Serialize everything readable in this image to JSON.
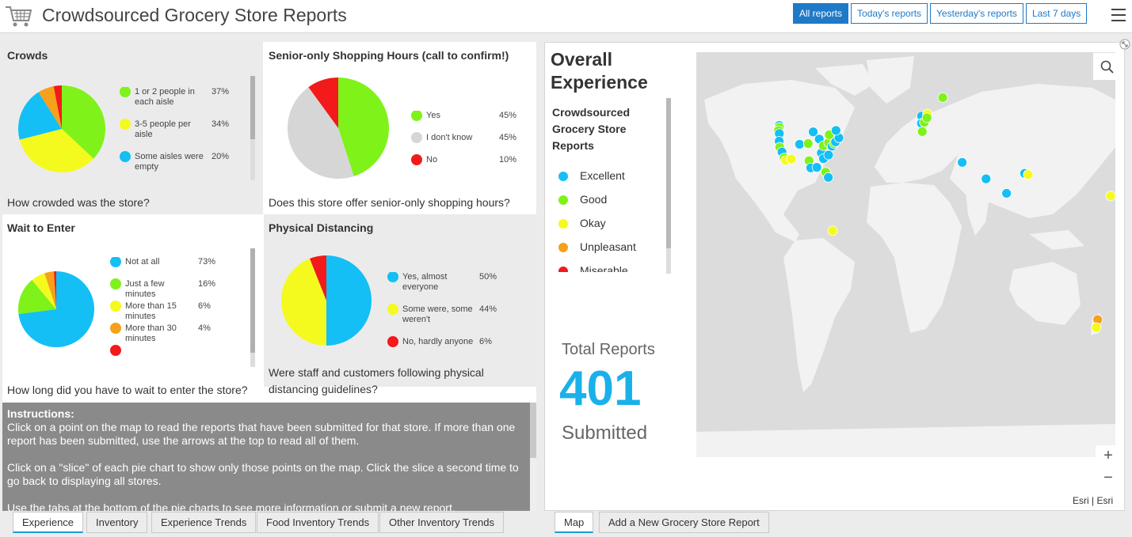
{
  "header": {
    "title": "Crowdsourced Grocery Store Reports",
    "filters": [
      "All reports",
      "Today's reports",
      "Yesterday's reports",
      "Last 7 days"
    ],
    "active_filter": "All reports"
  },
  "panels": {
    "crowds": {
      "title": "Crowds",
      "question": "How crowded was the store?",
      "legend": [
        {
          "label": "1 or 2 people in each aisle",
          "pct": "37%",
          "color": "#7ff21a"
        },
        {
          "label": "3-5 people per aisle",
          "pct": "34%",
          "color": "#f5fa1e"
        },
        {
          "label": "Some aisles were empty",
          "pct": "20%",
          "color": "#13bff5"
        }
      ],
      "slices": [
        {
          "color": "#7ff21a",
          "pct": 37
        },
        {
          "color": "#f5fa1e",
          "pct": 34
        },
        {
          "color": "#13bff5",
          "pct": 20
        },
        {
          "color": "#f7a01a",
          "pct": 6
        },
        {
          "color": "#f21a1a",
          "pct": 3
        }
      ]
    },
    "senior": {
      "title": "Senior-only Shopping Hours (call to confirm!)",
      "question": "Does this store offer senior-only shopping hours?",
      "legend": [
        {
          "label": "Yes",
          "pct": "45%",
          "color": "#7ff21a"
        },
        {
          "label": "I don't know",
          "pct": "45%",
          "color": "#d6d6d6"
        },
        {
          "label": "No",
          "pct": "10%",
          "color": "#f21a1a"
        }
      ],
      "slices": [
        {
          "color": "#7ff21a",
          "pct": 45
        },
        {
          "color": "#d6d6d6",
          "pct": 45
        },
        {
          "color": "#f21a1a",
          "pct": 10
        }
      ]
    },
    "wait": {
      "title": "Wait to Enter",
      "question": "How long did you have to wait to enter the store?",
      "legend": [
        {
          "label": "Not at all",
          "pct": "73%",
          "color": "#13bff5"
        },
        {
          "label": "Just a few minutes",
          "pct": "16%",
          "color": "#7ff21a"
        },
        {
          "label": "More than 15 minutes",
          "pct": "6%",
          "color": "#f5fa1e"
        },
        {
          "label": "More than 30 minutes",
          "pct": "4%",
          "color": "#f7a01a"
        },
        {
          "label": "",
          "pct": "",
          "color": "#f21a1a"
        }
      ],
      "slices": [
        {
          "color": "#13bff5",
          "pct": 73
        },
        {
          "color": "#7ff21a",
          "pct": 16
        },
        {
          "color": "#f5fa1e",
          "pct": 6
        },
        {
          "color": "#f7a01a",
          "pct": 4
        },
        {
          "color": "#f21a1a",
          "pct": 1
        }
      ]
    },
    "distancing": {
      "title": "Physical Distancing",
      "question": "Were staff and customers following physical distancing guidelines?",
      "legend": [
        {
          "label": "Yes, almost everyone",
          "pct": "50%",
          "color": "#13bff5"
        },
        {
          "label": "Some were, some weren't",
          "pct": "44%",
          "color": "#f5fa1e"
        },
        {
          "label": "No, hardly anyone",
          "pct": "6%",
          "color": "#f21a1a"
        }
      ],
      "slices": [
        {
          "color": "#13bff5",
          "pct": 50
        },
        {
          "color": "#f5fa1e",
          "pct": 44
        },
        {
          "color": "#f21a1a",
          "pct": 6
        }
      ]
    }
  },
  "instructions": {
    "title": "Instructions:",
    "paragraphs": [
      "Click on a point on the map to read the reports that have been submitted for that store. If more than one report has been submitted, use the arrows at the top to read all of them.",
      "Click on a \"slice\" of each pie chart to show only those points on the map. Click the slice a second time to go back to displaying all stores.",
      "Use the tabs at the bottom of the pie charts to see more information or submit a new report."
    ]
  },
  "left_tabs": [
    "Experience",
    "Inventory",
    "Experience Trends",
    "Food Inventory Trends",
    "Other Inventory Trends"
  ],
  "right_tabs": [
    "Map",
    "Add a New Grocery Store Report"
  ],
  "overall": {
    "title": "Overall Experience",
    "legend_title": "Crowdsourced Grocery Store Reports",
    "legend": [
      {
        "label": "Excellent",
        "color": "#13bff5"
      },
      {
        "label": "Good",
        "color": "#7ff21a"
      },
      {
        "label": "Okay",
        "color": "#f5fa1e"
      },
      {
        "label": "Unpleasant",
        "color": "#f7a01a"
      },
      {
        "label": "Miserable",
        "color": "#f21a1a"
      }
    ],
    "total_label": "Total Reports",
    "total_value": "401",
    "total_sub": "Submitted"
  },
  "map": {
    "attribution": "Esri | Esri",
    "zoom_in": "+",
    "zoom_out": "−",
    "points": [
      {
        "lon": -122.4,
        "lat": 47.6,
        "color": "#13bff5"
      },
      {
        "lon": -122.3,
        "lat": 46.8,
        "color": "#7ff21a"
      },
      {
        "lon": -123.0,
        "lat": 45.5,
        "color": "#7ff21a"
      },
      {
        "lon": -122.3,
        "lat": 44.2,
        "color": "#13bff5"
      },
      {
        "lon": -122.4,
        "lat": 41.0,
        "color": "#13bff5"
      },
      {
        "lon": -121.9,
        "lat": 38.5,
        "color": "#7ff21a"
      },
      {
        "lon": -120.0,
        "lat": 36.5,
        "color": "#13bff5"
      },
      {
        "lon": -118.2,
        "lat": 34.0,
        "color": "#7ff21a"
      },
      {
        "lon": -117.0,
        "lat": 33.0,
        "color": "#f5fa1e"
      },
      {
        "lon": -112.0,
        "lat": 33.5,
        "color": "#f5fa1e"
      },
      {
        "lon": -104.9,
        "lat": 39.7,
        "color": "#13bff5"
      },
      {
        "lon": -97.5,
        "lat": 40.0,
        "color": "#7ff21a"
      },
      {
        "lon": -96.8,
        "lat": 32.8,
        "color": "#7ff21a"
      },
      {
        "lon": -95.3,
        "lat": 29.8,
        "color": "#13bff5"
      },
      {
        "lon": -93.2,
        "lat": 44.9,
        "color": "#13bff5"
      },
      {
        "lon": -90.1,
        "lat": 30.0,
        "color": "#13bff5"
      },
      {
        "lon": -88.0,
        "lat": 41.9,
        "color": "#13bff5"
      },
      {
        "lon": -86.2,
        "lat": 36.1,
        "color": "#13bff5"
      },
      {
        "lon": -84.4,
        "lat": 33.7,
        "color": "#13bff5"
      },
      {
        "lon": -84.5,
        "lat": 39.1,
        "color": "#7ff21a"
      },
      {
        "lon": -82.5,
        "lat": 28.0,
        "color": "#7ff21a"
      },
      {
        "lon": -80.2,
        "lat": 25.8,
        "color": "#13bff5"
      },
      {
        "lon": -80.0,
        "lat": 35.2,
        "color": "#13bff5"
      },
      {
        "lon": -80.0,
        "lat": 40.4,
        "color": "#7ff21a"
      },
      {
        "lon": -77.0,
        "lat": 38.9,
        "color": "#13bff5"
      },
      {
        "lon": -75.2,
        "lat": 40.0,
        "color": "#7ff21a"
      },
      {
        "lon": -74.0,
        "lat": 40.7,
        "color": "#13bff5"
      },
      {
        "lon": -71.1,
        "lat": 42.4,
        "color": "#13bff5"
      },
      {
        "lon": -79.4,
        "lat": 43.7,
        "color": "#7ff21a"
      },
      {
        "lon": -73.6,
        "lat": 45.5,
        "color": "#13bff5"
      },
      {
        "lon": -76.5,
        "lat": 3.4,
        "color": "#f5fa1e"
      },
      {
        "lon": -0.1,
        "lat": 51.5,
        "color": "#13bff5"
      },
      {
        "lon": -0.2,
        "lat": 48.5,
        "color": "#13bff5"
      },
      {
        "lon": 2.3,
        "lat": 48.9,
        "color": "#7ff21a"
      },
      {
        "lon": 0.5,
        "lat": 45.0,
        "color": "#7ff21a"
      },
      {
        "lon": 4.9,
        "lat": 52.4,
        "color": "#f5fa1e"
      },
      {
        "lon": 4.5,
        "lat": 50.8,
        "color": "#7ff21a"
      },
      {
        "lon": 18.1,
        "lat": 59.3,
        "color": "#7ff21a"
      },
      {
        "lon": 34.8,
        "lat": 32.1,
        "color": "#13bff5"
      },
      {
        "lon": 55.3,
        "lat": 25.2,
        "color": "#13bff5"
      },
      {
        "lon": 72.9,
        "lat": 19.1,
        "color": "#13bff5"
      },
      {
        "lon": 88.4,
        "lat": 27.5,
        "color": "#13bff5"
      },
      {
        "lon": 91.5,
        "lat": 27.0,
        "color": "#f5fa1e"
      },
      {
        "lon": 151.2,
        "lat": -33.9,
        "color": "#f7a01a"
      },
      {
        "lon": 150.0,
        "lat": -37.2,
        "color": "#f5fa1e"
      },
      {
        "lon": 179.5,
        "lat": 18.0,
        "color": "#f5fa1e"
      }
    ]
  }
}
